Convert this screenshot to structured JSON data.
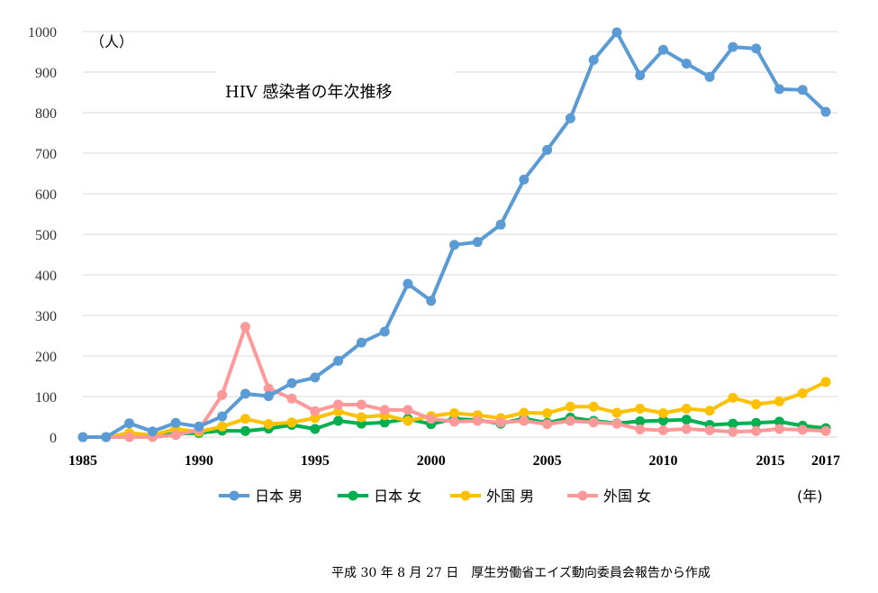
{
  "chart_data": {
    "type": "line",
    "title": "HIV 感染者の年次推移",
    "ylabel_unit": "（人）",
    "xlabel_unit": "(年)",
    "source": "平成 30 年 8 月 27 日　厚生労働省エイズ動向委員会報告から作成",
    "x": [
      1985,
      1986,
      1987,
      1988,
      1989,
      1990,
      1991,
      1992,
      1993,
      1994,
      1995,
      1996,
      1997,
      1998,
      1999,
      2000,
      2001,
      2002,
      2003,
      2004,
      2005,
      2006,
      2007,
      2008,
      2009,
      2010,
      2011,
      2012,
      2013,
      2014,
      2015,
      2016,
      2017
    ],
    "x_tick_labels": [
      "1985",
      "1990",
      "1995",
      "2000",
      "2005",
      "2010",
      "2015",
      "2017"
    ],
    "x_tick_values": [
      1985,
      1990,
      1995,
      2000,
      2005,
      2010,
      2015,
      2017
    ],
    "ylim": [
      0,
      1000
    ],
    "y_ticks": [
      0,
      100,
      200,
      300,
      400,
      500,
      600,
      700,
      800,
      900,
      1000
    ],
    "grid": true,
    "legend_position": "bottom",
    "series": [
      {
        "name": "日本 男",
        "color": "#5b9bd5",
        "values": [
          0,
          0,
          34,
          14,
          35,
          26,
          51,
          107,
          101,
          133,
          147,
          188,
          233,
          260,
          378,
          336,
          474,
          481,
          524,
          635,
          708,
          786,
          930,
          998,
          892,
          955,
          921,
          888,
          962,
          958,
          858,
          856,
          802
        ]
      },
      {
        "name": "日本 女",
        "color": "#00b050",
        "values": [
          0,
          0,
          2,
          3,
          8,
          10,
          16,
          15,
          21,
          30,
          20,
          40,
          33,
          36,
          45,
          32,
          45,
          42,
          33,
          46,
          35,
          48,
          40,
          34,
          39,
          41,
          43,
          30,
          33,
          35,
          38,
          28,
          22
        ]
      },
      {
        "name": "外国 男",
        "color": "#ffc000",
        "values": [
          0,
          0,
          10,
          5,
          20,
          13,
          26,
          45,
          32,
          36,
          47,
          63,
          49,
          54,
          40,
          52,
          59,
          54,
          47,
          60,
          59,
          75,
          75,
          60,
          70,
          59,
          70,
          65,
          97,
          81,
          88,
          108,
          136
        ]
      },
      {
        "name": "外国 女",
        "color": "#ff9999",
        "values": [
          0,
          0,
          0,
          0,
          5,
          18,
          104,
          272,
          120,
          95,
          64,
          80,
          80,
          67,
          67,
          45,
          38,
          40,
          36,
          40,
          32,
          40,
          36,
          33,
          19,
          17,
          20,
          17,
          13,
          15,
          20,
          18,
          15
        ]
      }
    ]
  }
}
